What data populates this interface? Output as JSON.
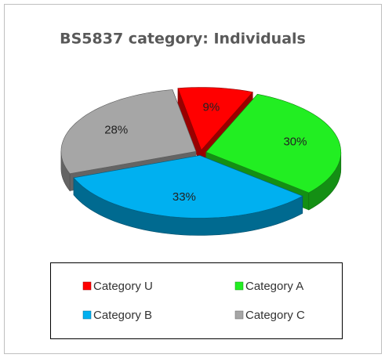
{
  "chart_data": {
    "type": "pie",
    "title": "BS5837 category: Individuals",
    "categories": [
      "Category U",
      "Category A",
      "Category B",
      "Category C"
    ],
    "values": [
      9,
      30,
      33,
      28
    ],
    "value_labels": [
      "9%",
      "30%",
      "33%",
      "28%"
    ],
    "colors": [
      "#ff0000",
      "#22ee22",
      "#00b0f0",
      "#a6a6a6"
    ],
    "legend": "bottom"
  }
}
